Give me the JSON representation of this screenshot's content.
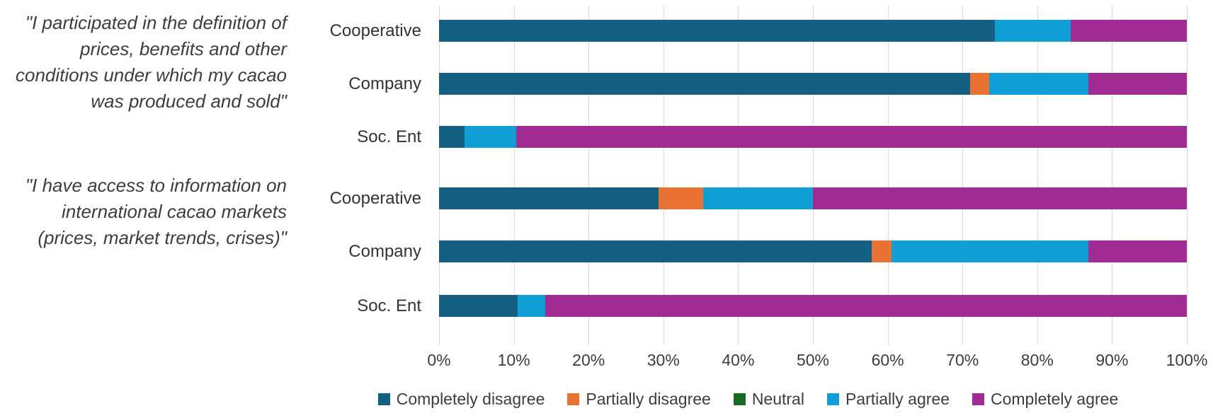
{
  "chart_data": {
    "type": "bar",
    "orientation": "horizontal",
    "stacked": true,
    "unit": "percent",
    "xlim": [
      0,
      100
    ],
    "grid": true,
    "gridline_color": "#d9d9d9",
    "x_tick_labels": [
      "0%",
      "10%",
      "20%",
      "30%",
      "40%",
      "50%",
      "60%",
      "70%",
      "80%",
      "90%",
      "100%"
    ],
    "legend_position": "bottom",
    "series_names": [
      "Completely disagree",
      "Partially disagree",
      "Neutral",
      "Partially agree",
      "Completely agree"
    ],
    "series_colors": [
      "#156082",
      "#E97132",
      "#196B24",
      "#0F9ED5",
      "#A02B93"
    ],
    "groups": [
      {
        "question": "\"I participated in the definition of prices, benefits and other conditions under which my cacao was produced and sold\"",
        "rows": [
          {
            "label": "Cooperative",
            "values": [
              74.3,
              0,
              0,
              10.2,
              15.5
            ]
          },
          {
            "label": "Company",
            "values": [
              71.0,
              2.6,
              0,
              13.2,
              13.2
            ]
          },
          {
            "label": "Soc. Ent",
            "values": [
              3.4,
              0,
              0,
              6.9,
              89.7
            ]
          }
        ]
      },
      {
        "question": "\"I have access to information on international cacao markets (prices, market trends, crises)\"",
        "rows": [
          {
            "label": "Cooperative",
            "values": [
              29.4,
              5.9,
              0,
              14.7,
              50.0
            ]
          },
          {
            "label": "Company",
            "values": [
              57.9,
              2.6,
              0,
              26.3,
              13.2
            ]
          },
          {
            "label": "Soc. Ent",
            "values": [
              10.5,
              0,
              0,
              3.7,
              85.8
            ]
          }
        ]
      }
    ]
  }
}
